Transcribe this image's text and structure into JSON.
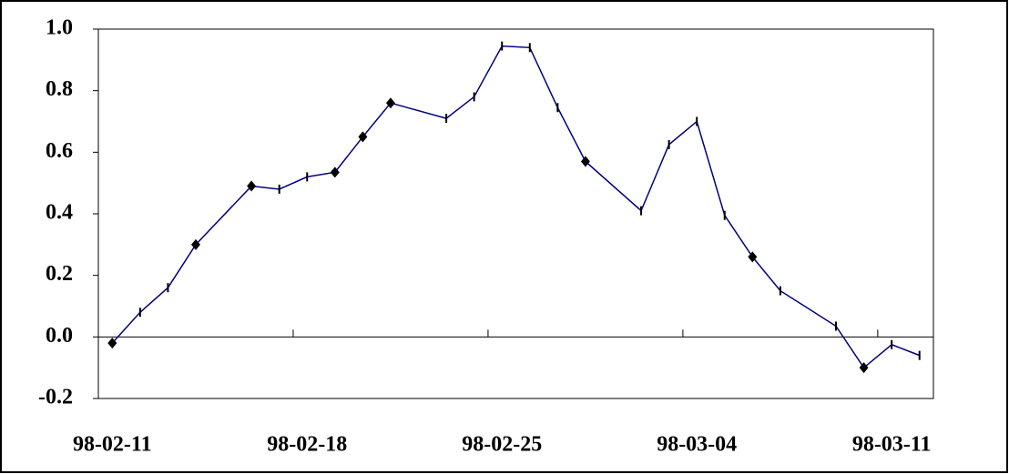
{
  "chart_data": {
    "type": "line",
    "x": [
      "98-02-11",
      "98-02-12",
      "98-02-13",
      "98-02-14",
      "98-02-16",
      "98-02-17",
      "98-02-18",
      "98-02-19",
      "98-02-20",
      "98-02-21",
      "98-02-23",
      "98-02-24",
      "98-02-25",
      "98-02-26",
      "98-02-27",
      "98-02-28",
      "98-03-02",
      "98-03-03",
      "98-03-04",
      "98-03-05",
      "98-03-06",
      "98-03-07",
      "98-03-09",
      "98-03-10",
      "98-03-11",
      "98-03-12"
    ],
    "series": [
      {
        "color": "#000080",
        "values": [
          -0.02,
          0.08,
          0.16,
          0.3,
          0.49,
          0.48,
          0.52,
          0.535,
          0.65,
          0.76,
          0.71,
          0.78,
          0.945,
          0.94,
          0.745,
          0.57,
          0.41,
          0.625,
          0.7,
          0.395,
          0.26,
          0.15,
          0.035,
          -0.1,
          -0.025,
          -0.06
        ],
        "markers": [
          "diamond",
          "bar",
          "bar",
          "diamond",
          "diamond",
          "bar",
          "bar",
          "diamond",
          "diamond",
          "diamond",
          "bar",
          "bar",
          "bar",
          "bar",
          "bar",
          "diamond",
          "bar",
          "bar",
          "bar",
          "bar",
          "diamond",
          "bar",
          "bar",
          "diamond",
          "bar",
          "bar"
        ]
      }
    ],
    "ylim": [
      -0.2,
      1.0
    ],
    "yticks": [
      {
        "value": -0.2,
        "label": "-0.2"
      },
      {
        "value": 0,
        "label": "0.0"
      },
      {
        "value": 0.2,
        "label": "0.2"
      },
      {
        "value": 0.4,
        "label": "0.4"
      },
      {
        "value": 0.6,
        "label": "0.6"
      },
      {
        "value": 0.8,
        "label": "0.8"
      },
      {
        "value": 1.0,
        "label": "1.0"
      }
    ],
    "xticks": [
      "98-02-11",
      "98-02-18",
      "98-02-25",
      "98-03-04",
      "98-03-11"
    ]
  }
}
